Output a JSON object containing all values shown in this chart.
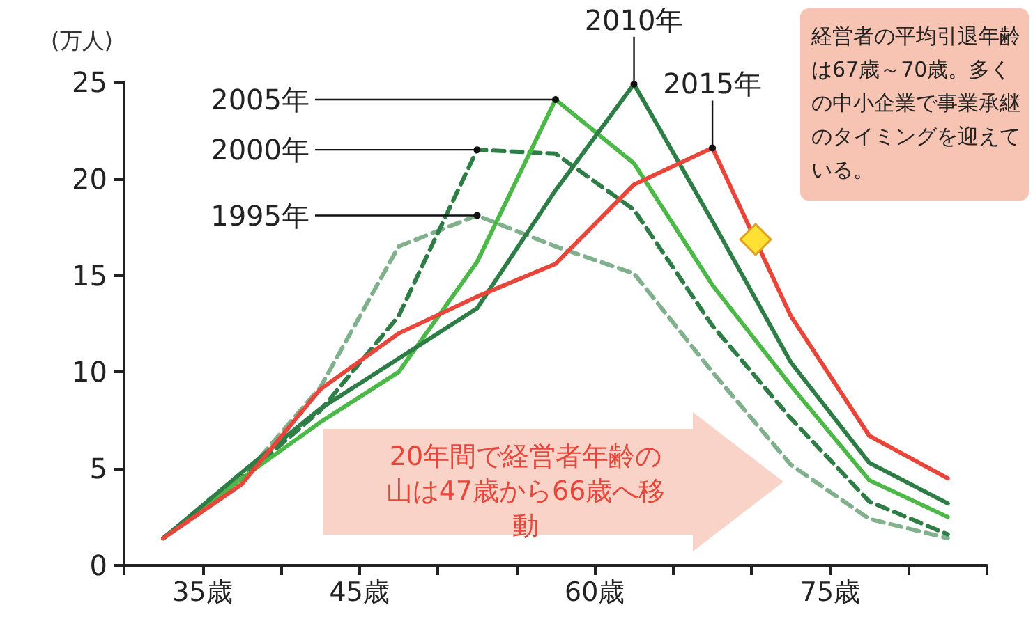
{
  "chart_data": {
    "type": "line",
    "ylabel": "(万人)",
    "x": [
      32.5,
      37.5,
      42.5,
      47.5,
      52.5,
      57.5,
      62.5,
      67.5,
      72.5,
      77.5,
      82.5
    ],
    "xlim": [
      30,
      85
    ],
    "xticks": [
      {
        "value": 30,
        "label": null
      },
      {
        "value": 35,
        "label": "35歳"
      },
      {
        "value": 40,
        "label": null
      },
      {
        "value": 45,
        "label": "45歳"
      },
      {
        "value": 50,
        "label": null
      },
      {
        "value": 55,
        "label": null
      },
      {
        "value": 60,
        "label": "60歳"
      },
      {
        "value": 65,
        "label": null
      },
      {
        "value": 70,
        "label": null
      },
      {
        "value": 75,
        "label": "75歳"
      },
      {
        "value": 80,
        "label": null
      },
      {
        "value": 85,
        "label": null
      }
    ],
    "ylim": [
      0,
      25
    ],
    "yticks": [
      0,
      5,
      10,
      15,
      20,
      25
    ],
    "series": [
      {
        "name": "1995年",
        "color": "#80b08c",
        "line_style": "dashed",
        "values": [
          1.4,
          4.5,
          9.2,
          16.5,
          18.1,
          16.5,
          15.1,
          10.0,
          5.2,
          2.4,
          1.4
        ]
      },
      {
        "name": "2000年",
        "color": "#2e7d46",
        "line_style": "dashed",
        "values": [
          1.4,
          4.5,
          8.0,
          12.9,
          21.5,
          21.3,
          18.4,
          12.4,
          7.6,
          3.3,
          1.6
        ]
      },
      {
        "name": "2005年",
        "color": "#4cb848",
        "line_style": "solid",
        "values": [
          1.4,
          4.5,
          7.4,
          10.0,
          15.7,
          24.1,
          20.8,
          14.5,
          9.3,
          4.4,
          2.5
        ]
      },
      {
        "name": "2010年",
        "color": "#2e7d46",
        "line_style": "solid",
        "values": [
          1.4,
          4.8,
          8.1,
          10.7,
          13.3,
          19.4,
          24.9,
          17.8,
          10.5,
          5.3,
          3.2
        ]
      },
      {
        "name": "2015年",
        "color": "#e8463a",
        "line_style": "solid",
        "values": [
          1.4,
          4.2,
          9.1,
          12.0,
          13.9,
          15.6,
          19.7,
          21.6,
          12.9,
          6.7,
          4.5
        ]
      }
    ],
    "marker": "none",
    "grid": false,
    "legend": false,
    "annotations": [
      "経営者の平均引退年齢は67歳～70歳。多くの中小企業で事業承継のタイミングを迎えている。",
      "20年間で経営者年齢の山は47歳から66歳へ移動"
    ]
  }
}
